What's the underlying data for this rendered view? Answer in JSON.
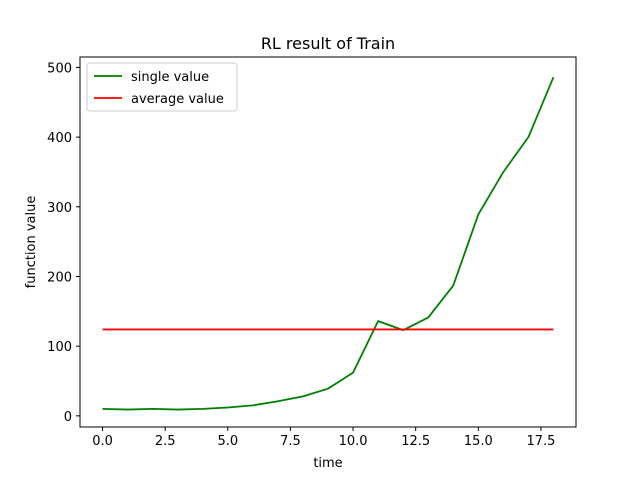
{
  "chart_data": {
    "type": "line",
    "title": "RL result of Train",
    "xlabel": "time",
    "ylabel": "function value",
    "xlim": [
      -0.9,
      18.9
    ],
    "ylim": [
      -16,
      515
    ],
    "xticks": [
      0.0,
      2.5,
      5.0,
      7.5,
      10.0,
      12.5,
      15.0,
      17.5
    ],
    "xtick_labels": [
      "0.0",
      "2.5",
      "5.0",
      "7.5",
      "10.0",
      "12.5",
      "15.0",
      "17.5"
    ],
    "yticks": [
      0,
      100,
      200,
      300,
      400,
      500
    ],
    "ytick_labels": [
      "0",
      "100",
      "200",
      "300",
      "400",
      "500"
    ],
    "grid": false,
    "legend_position": "upper-left",
    "series": [
      {
        "name": "single value",
        "color": "#008000",
        "x": [
          0,
          1,
          2,
          3,
          4,
          5,
          6,
          7,
          8,
          9,
          10,
          11,
          12,
          13,
          14,
          15,
          16,
          17,
          18
        ],
        "values": [
          10,
          9,
          10,
          9,
          10,
          12,
          15,
          21,
          28,
          39,
          62,
          136,
          123,
          141,
          187,
          289,
          350,
          400,
          486
        ]
      },
      {
        "name": "average value",
        "color": "#ff0000",
        "x": [
          0,
          18
        ],
        "values": [
          124,
          124
        ]
      }
    ]
  }
}
